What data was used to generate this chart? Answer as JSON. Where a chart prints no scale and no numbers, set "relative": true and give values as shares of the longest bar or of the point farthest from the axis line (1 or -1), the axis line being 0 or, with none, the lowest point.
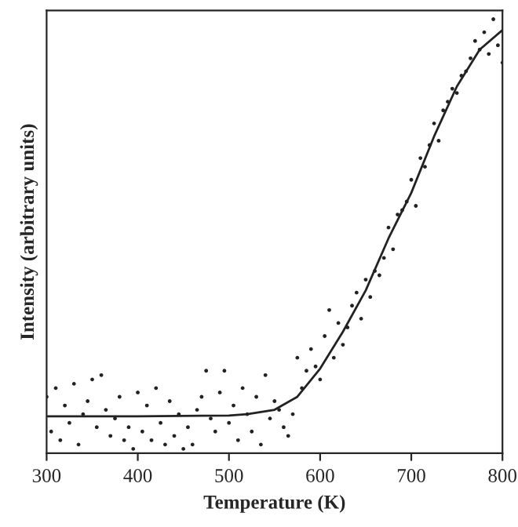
{
  "chart_data": {
    "type": "scatter",
    "xlabel": "Temperature (K)",
    "ylabel": "Intensity (arbitrary units)",
    "relative": true,
    "xlim": [
      300,
      800
    ],
    "xticks": [
      300,
      400,
      500,
      600,
      700,
      800
    ],
    "grid": false,
    "legend": false,
    "series": [
      {
        "color": "#222222",
        "x": [
          300,
          305,
          310,
          315,
          320,
          325,
          330,
          335,
          340,
          345,
          350,
          355,
          360,
          365,
          370,
          375,
          380,
          385,
          390,
          395,
          400,
          405,
          410,
          415,
          420,
          425,
          430,
          435,
          440,
          445,
          450,
          455,
          460,
          465,
          470,
          475,
          480,
          485,
          490,
          495,
          500,
          505,
          510,
          515,
          520,
          525,
          530,
          535,
          540,
          545,
          550,
          555,
          560,
          565,
          570,
          575,
          580,
          585,
          590,
          595,
          600,
          605,
          610,
          615,
          620,
          625,
          630,
          635,
          640,
          645,
          650,
          655,
          660,
          665,
          670,
          675,
          680,
          685,
          690,
          695,
          700,
          705,
          710,
          715,
          720,
          725,
          730,
          735,
          740,
          745,
          750,
          755,
          760,
          765,
          770,
          775,
          780,
          785,
          790,
          795,
          800
        ],
        "values": [
          0.13,
          0.05,
          0.15,
          0.03,
          0.11,
          0.07,
          0.16,
          0.02,
          0.09,
          0.12,
          0.17,
          0.06,
          0.18,
          0.1,
          0.04,
          0.08,
          0.13,
          0.03,
          0.06,
          0.01,
          0.14,
          0.05,
          0.11,
          0.03,
          0.15,
          0.07,
          0.02,
          0.12,
          0.04,
          0.09,
          0.01,
          0.06,
          0.02,
          0.1,
          0.13,
          0.19,
          0.08,
          0.05,
          0.14,
          0.19,
          0.07,
          0.11,
          0.03,
          0.15,
          0.09,
          0.05,
          0.13,
          0.02,
          0.18,
          0.08,
          0.12,
          0.1,
          0.06,
          0.04,
          0.09,
          0.22,
          0.15,
          0.19,
          0.24,
          0.2,
          0.17,
          0.27,
          0.33,
          0.22,
          0.3,
          0.25,
          0.29,
          0.34,
          0.37,
          0.31,
          0.4,
          0.36,
          0.42,
          0.41,
          0.45,
          0.52,
          0.47,
          0.55,
          0.56,
          0.58,
          0.63,
          0.57,
          0.68,
          0.66,
          0.71,
          0.76,
          0.72,
          0.79,
          0.81,
          0.84,
          0.83,
          0.87,
          0.88,
          0.91,
          0.95,
          0.93,
          0.97,
          0.92,
          1.0,
          0.94,
          0.9
        ]
      },
      {
        "type": "line",
        "color": "#222222",
        "x": [
          300,
          400,
          500,
          520,
          550,
          575,
          600,
          625,
          650,
          675,
          700,
          725,
          750,
          775,
          800
        ],
        "values": [
          0.085,
          0.085,
          0.087,
          0.09,
          0.1,
          0.13,
          0.195,
          0.28,
          0.375,
          0.495,
          0.6,
          0.73,
          0.845,
          0.93,
          0.975
        ]
      }
    ]
  }
}
